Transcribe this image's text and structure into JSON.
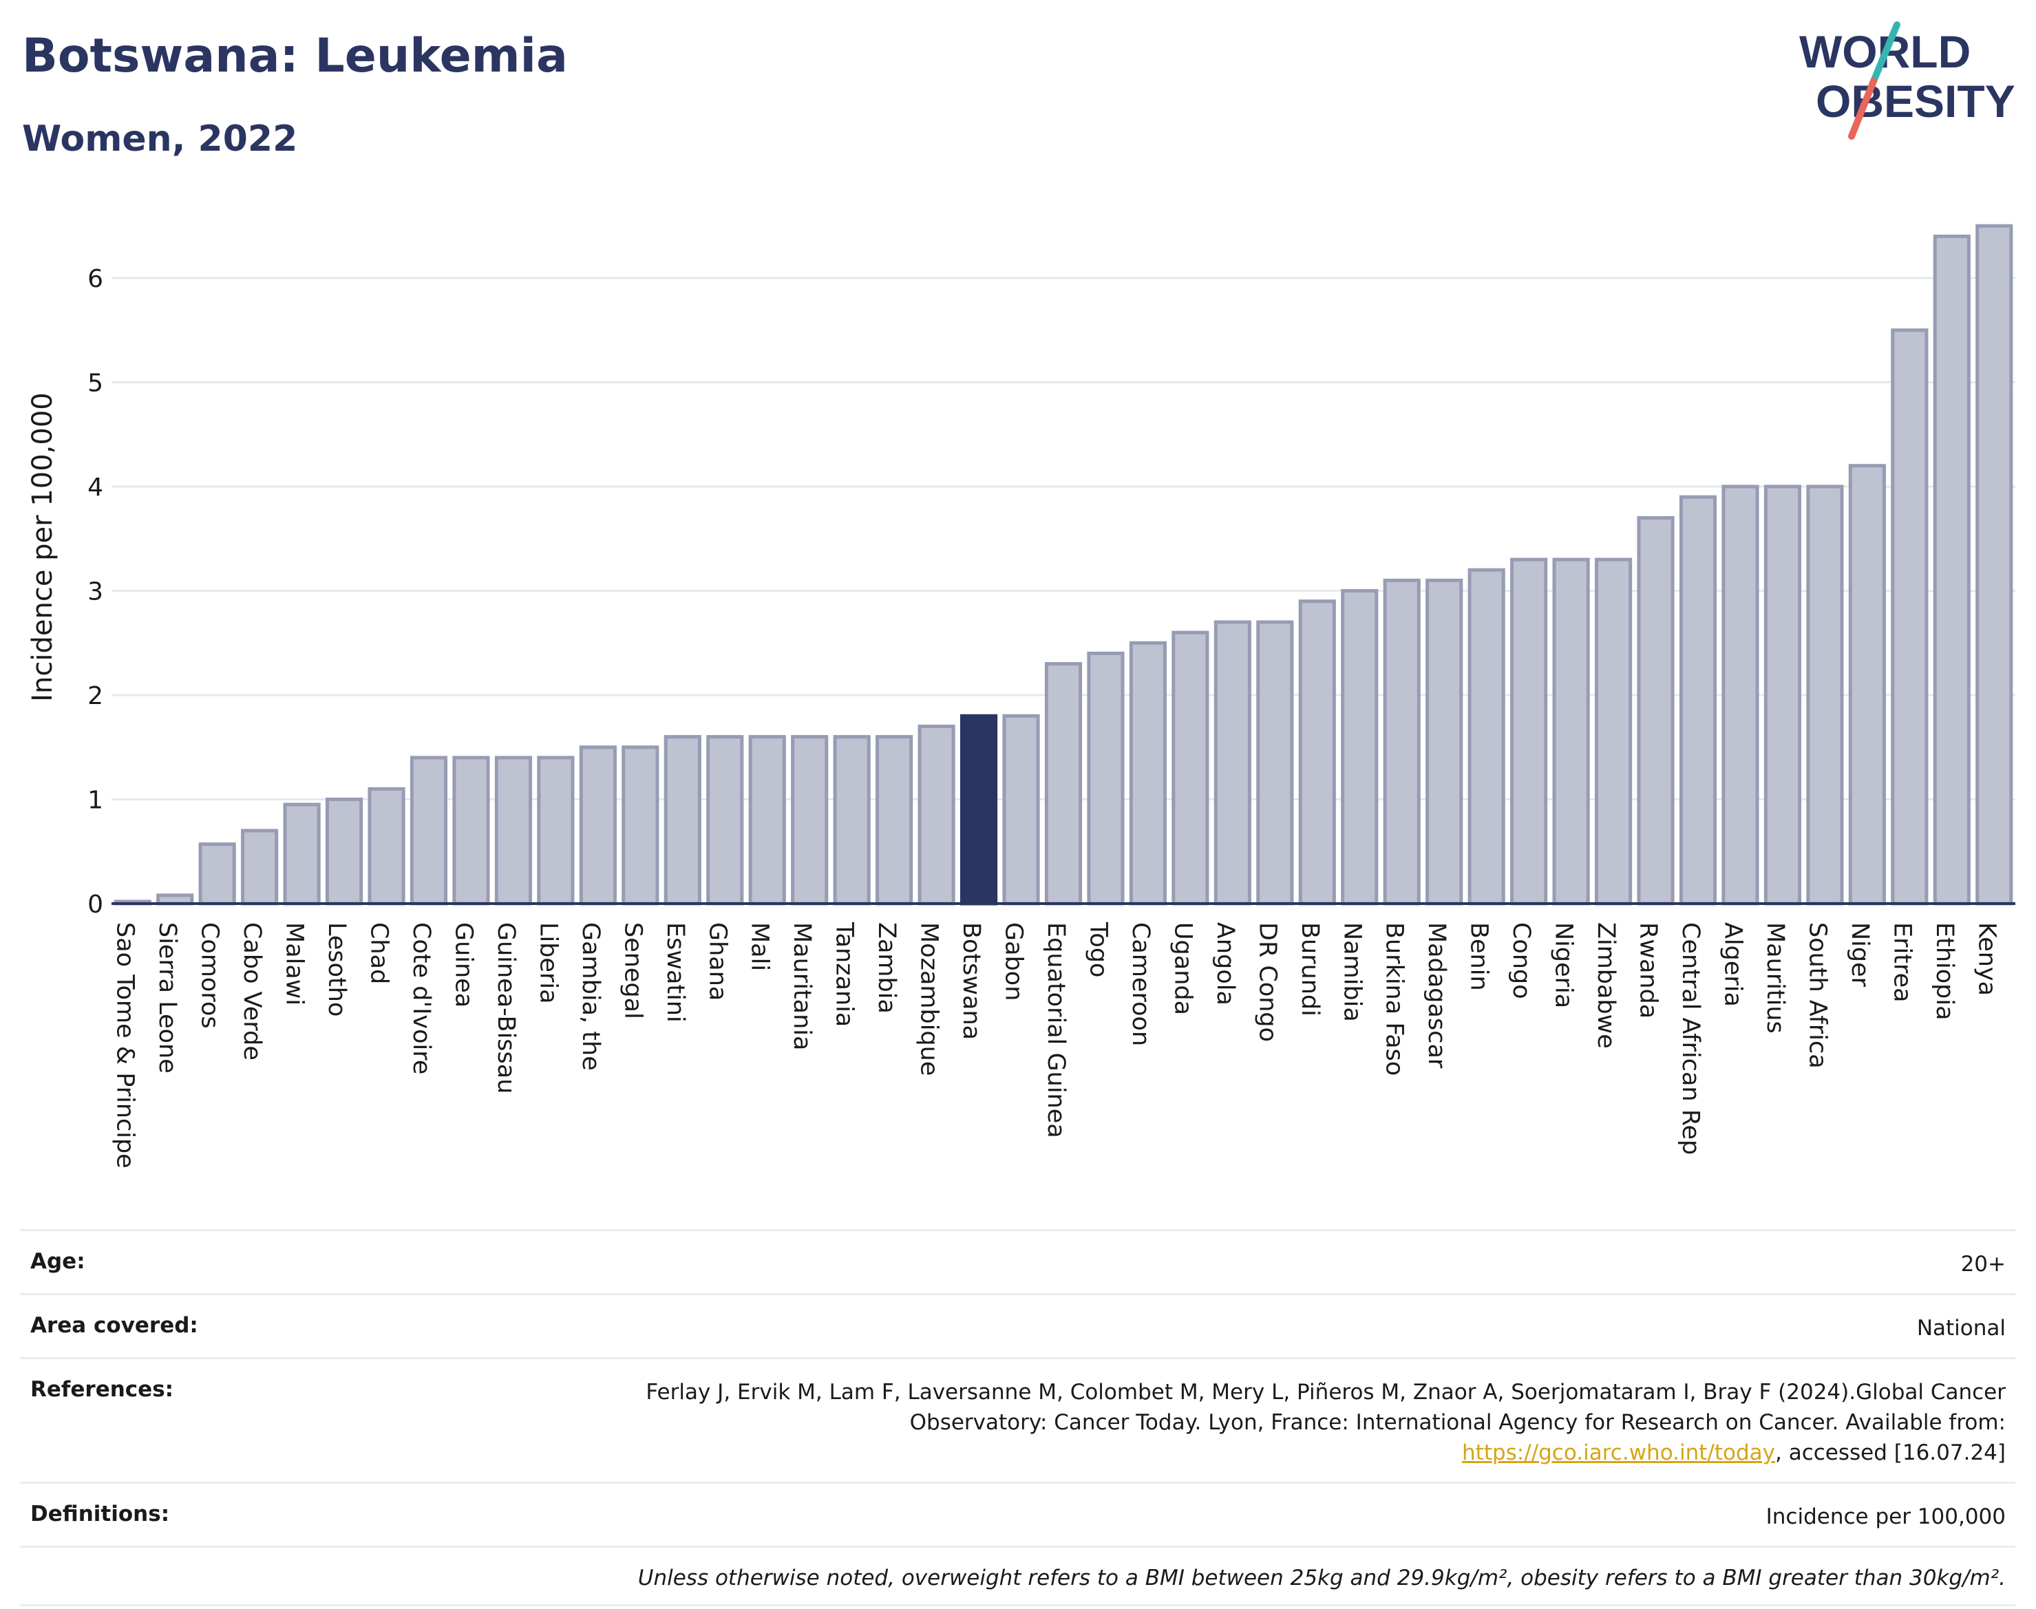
{
  "header": {
    "title": "Botswana: Leukemia",
    "subtitle": "Women, 2022"
  },
  "logo": {
    "line1": "WORLD",
    "line2": "OBESITY",
    "colors": {
      "text": "#2b3561",
      "teal": "#36b5b0",
      "coral": "#e8665a"
    }
  },
  "chart_data": {
    "type": "bar",
    "title": "Botswana: Leukemia",
    "subtitle": "Women, 2022",
    "xlabel": "",
    "ylabel": "Incidence per 100,000",
    "ylim": [
      0,
      6.5
    ],
    "yticks": [
      0,
      1,
      2,
      3,
      4,
      5,
      6
    ],
    "grid": true,
    "highlight": "Botswana",
    "colors": {
      "bar": "#bfc2d0",
      "bar_edge": "#979cb4",
      "highlight": "#2b3561",
      "grid": "#e6e8ef",
      "axis": "#2b3561"
    },
    "categories": [
      "Sao Tome & Principe",
      "Sierra Leone",
      "Comoros",
      "Cabo Verde",
      "Malawi",
      "Lesotho",
      "Chad",
      "Cote d'Ivoire",
      "Guinea",
      "Guinea-Bissau",
      "Liberia",
      "Gambia, the",
      "Senegal",
      "Eswatini",
      "Ghana",
      "Mali",
      "Mauritania",
      "Tanzania",
      "Zambia",
      "Mozambique",
      "Botswana",
      "Gabon",
      "Equatorial Guinea",
      "Togo",
      "Cameroon",
      "Uganda",
      "Angola",
      "DR Congo",
      "Burundi",
      "Namibia",
      "Burkina Faso",
      "Madagascar",
      "Benin",
      "Congo",
      "Nigeria",
      "Zimbabwe",
      "Rwanda",
      "Central African Rep",
      "Algeria",
      "Mauritius",
      "South Africa",
      "Niger",
      "Eritrea",
      "Ethiopia",
      "Kenya"
    ],
    "values": [
      0.02,
      0.08,
      0.57,
      0.7,
      0.95,
      1.0,
      1.1,
      1.4,
      1.4,
      1.4,
      1.4,
      1.5,
      1.5,
      1.6,
      1.6,
      1.6,
      1.6,
      1.6,
      1.6,
      1.7,
      1.8,
      1.8,
      2.3,
      2.4,
      2.5,
      2.6,
      2.7,
      2.7,
      2.9,
      3.0,
      3.1,
      3.1,
      3.2,
      3.3,
      3.3,
      3.3,
      3.7,
      3.9,
      4.0,
      4.0,
      4.0,
      4.2,
      5.5,
      6.4,
      6.5
    ]
  },
  "info": {
    "age": {
      "label": "Age:",
      "value": "20+"
    },
    "area": {
      "label": "Area covered:",
      "value": "National"
    },
    "references": {
      "label": "References:",
      "text1": "Ferlay J, Ervik M, Lam F, Laversanne M, Colombet M, Mery L, Piñeros M, Znaor A, Soerjomataram I, Bray F (2024).Global Cancer Observatory: Cancer Today. Lyon, France: International Agency for Research on Cancer. Available from: ",
      "link": "https://gco.iarc.who.int/today",
      "text2": ", accessed [16.07.24]"
    },
    "definitions": {
      "label": "Definitions:",
      "value": "Incidence per 100,000"
    },
    "note": "Unless otherwise noted, overweight refers to a BMI between 25kg and 29.9kg/m², obesity refers to a BMI greater than 30kg/m²."
  }
}
